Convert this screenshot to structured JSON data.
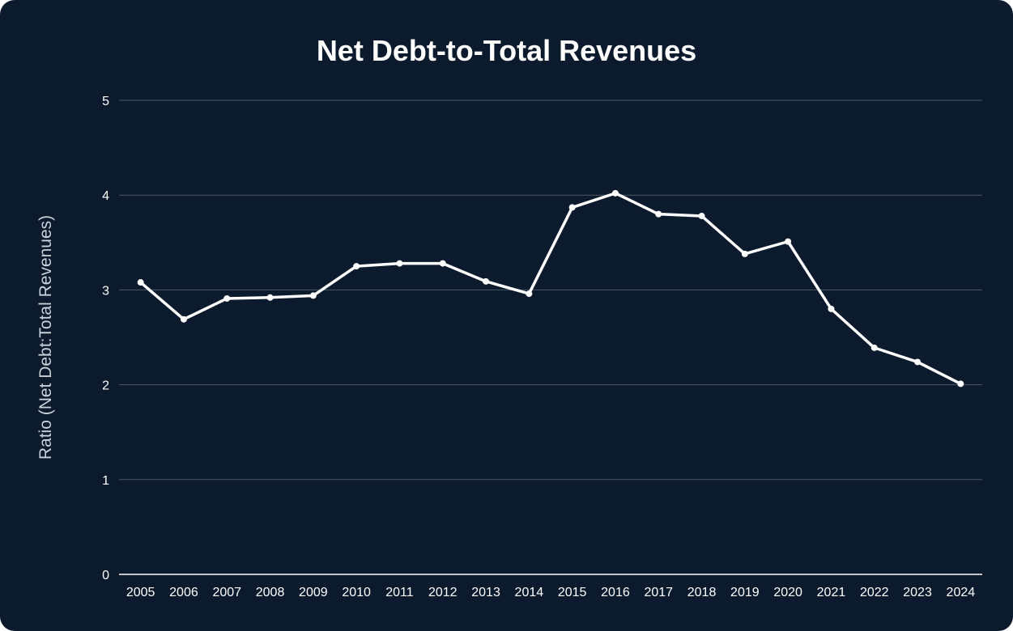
{
  "chart_data": {
    "type": "line",
    "title": "Net Debt-to-Total Revenues",
    "xlabel": "",
    "ylabel": "Ratio (Net Debt:Total Revenues)",
    "ylim": [
      0,
      5
    ],
    "yticks": [
      "0",
      "1",
      "2",
      "3",
      "4",
      "5"
    ],
    "grid": true,
    "legend": "none",
    "categories": [
      "2005",
      "2006",
      "2007",
      "2008",
      "2009",
      "2010",
      "2011",
      "2012",
      "2013",
      "2014",
      "2015",
      "2016",
      "2017",
      "2018",
      "2019",
      "2020",
      "2021",
      "2022",
      "2023",
      "2024"
    ],
    "series": [
      {
        "values": [
          3.08,
          2.69,
          2.91,
          2.92,
          2.94,
          3.25,
          3.28,
          3.28,
          3.09,
          2.96,
          3.87,
          4.02,
          3.8,
          3.78,
          3.38,
          3.51,
          2.8,
          2.39,
          2.24,
          2.01
        ]
      }
    ],
    "colors": {
      "background": "#0b1a2c",
      "line": "#ffffff",
      "grid": "#4a5866"
    }
  }
}
